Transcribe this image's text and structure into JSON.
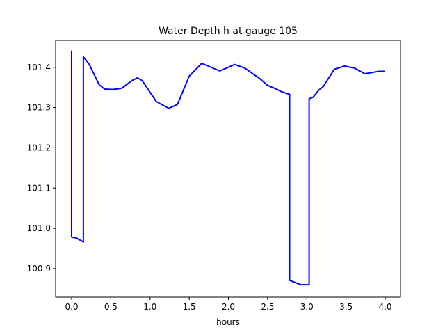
{
  "chart_data": {
    "type": "line",
    "title": "Water Depth h at gauge 105",
    "xlabel": "hours",
    "ylabel": "",
    "xlim": [
      -0.204,
      4.195
    ],
    "ylim": [
      100.829,
      101.467
    ],
    "xticks": [
      0,
      0.5,
      1,
      1.5,
      2,
      2.5,
      3,
      3.5,
      4
    ],
    "xtick_labels": [
      "0.0",
      "0.5",
      "1.0",
      "1.5",
      "2.0",
      "2.5",
      "3.0",
      "3.5",
      "4.0"
    ],
    "yticks": [
      100.9,
      101.0,
      101.1,
      101.2,
      101.3,
      101.4
    ],
    "ytick_labels": [
      "100.9",
      "101.0",
      "101.1",
      "101.2",
      "101.3",
      "101.4"
    ],
    "grid": false,
    "series": [
      {
        "name": "h",
        "color": "#0000ff",
        "x": [
          0,
          0,
          0.06,
          0.15,
          0.15,
          0.22,
          0.29,
          0.35,
          0.42,
          0.53,
          0.64,
          0.77,
          0.84,
          0.9,
          1.08,
          1.24,
          1.35,
          1.5,
          1.66,
          1.89,
          2.08,
          2.21,
          2.4,
          2.5,
          2.59,
          2.68,
          2.78,
          2.78,
          2.92,
          3.03,
          3.03,
          3.08,
          3.15,
          3.21,
          3.35,
          3.48,
          3.61,
          3.74,
          3.92,
          4.0
        ],
        "y": [
          101.442,
          100.978,
          100.976,
          100.966,
          101.426,
          101.409,
          101.381,
          101.357,
          101.346,
          101.345,
          101.348,
          101.367,
          101.374,
          101.367,
          101.315,
          101.298,
          101.308,
          101.378,
          101.41,
          101.391,
          101.407,
          101.398,
          101.372,
          101.355,
          101.348,
          101.339,
          101.333,
          100.871,
          100.86,
          100.86,
          101.322,
          101.326,
          101.343,
          101.352,
          101.395,
          101.403,
          101.398,
          101.384,
          101.39,
          101.39
        ]
      }
    ]
  }
}
